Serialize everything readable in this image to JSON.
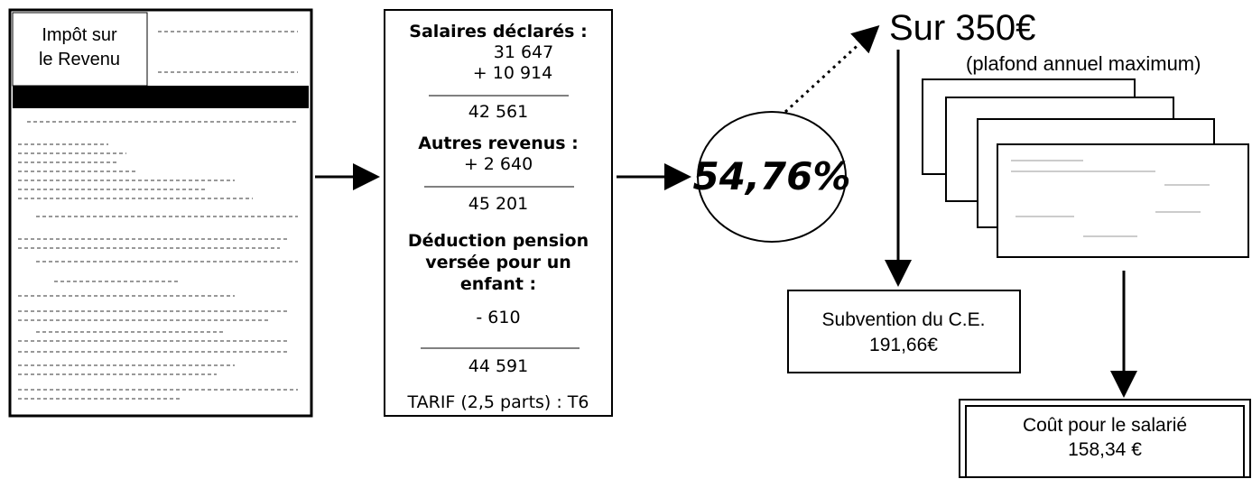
{
  "tax_document": {
    "label_lines": [
      "Impôt sur",
      "le Revenu"
    ]
  },
  "calculation": {
    "salaries_title": "Salaires déclarés :",
    "salary_lines": [
      "31 647",
      "+ 10 914"
    ],
    "subtotal_1": "42 561",
    "other_title": "Autres revenus :",
    "other_line": "+ 2 640",
    "subtotal_2": "45 201",
    "deduction_title_lines": [
      "Déduction pension",
      "versée pour un",
      "enfant :"
    ],
    "deduction_line": "- 610",
    "total": "44 591",
    "tariff": "TARIF (2,5 parts) : T6"
  },
  "rate": "54,76%",
  "ceiling": {
    "amount": "Sur 350€",
    "note": "(plafond annuel maximum)"
  },
  "subsidy": {
    "label": "Subvention du C.E.",
    "amount": "191,66€"
  },
  "employee_cost": {
    "label": "Coût pour le salarié",
    "amount": "158,34 €"
  }
}
